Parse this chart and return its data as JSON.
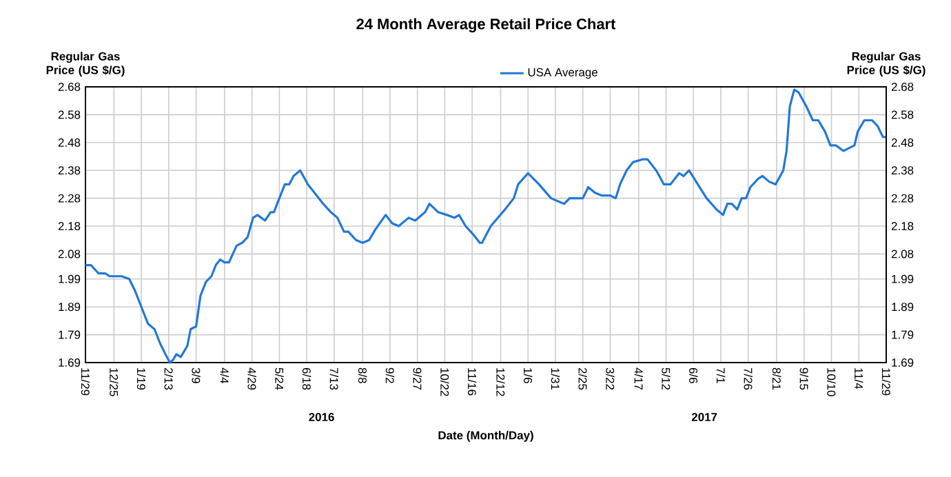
{
  "chart_data": {
    "type": "line",
    "title": "24 Month Average Retail Price Chart",
    "xlabel": "Date (Month/Day)",
    "ylabel": "Regular Gas Price (US $/G)",
    "y2label": "Regular Gas Price (US $/G)",
    "x": [
      "2015-11-29",
      "2015-12-04",
      "2015-12-11",
      "2015-12-17",
      "2015-12-21",
      "2016-01-01",
      "2016-01-08",
      "2016-01-13",
      "2016-01-20",
      "2016-01-25",
      "2016-01-31",
      "2016-02-05",
      "2016-02-10",
      "2016-02-14",
      "2016-02-17",
      "2016-02-20",
      "2016-02-24",
      "2016-03-01",
      "2016-03-04",
      "2016-03-09",
      "2016-03-13",
      "2016-03-18",
      "2016-03-23",
      "2016-03-27",
      "2016-03-31",
      "2016-04-04",
      "2016-04-08",
      "2016-04-15",
      "2016-04-20",
      "2016-04-25",
      "2016-04-30",
      "2016-05-04",
      "2016-05-11",
      "2016-05-16",
      "2016-05-19",
      "2016-05-24",
      "2016-05-29",
      "2016-06-02",
      "2016-06-06",
      "2016-06-12",
      "2016-06-19",
      "2016-06-27",
      "2016-07-03",
      "2016-07-10",
      "2016-07-16",
      "2016-07-22",
      "2016-07-26",
      "2016-08-02",
      "2016-08-08",
      "2016-08-14",
      "2016-08-20",
      "2016-08-29",
      "2016-09-04",
      "2016-09-10",
      "2016-09-19",
      "2016-09-25",
      "2016-10-04",
      "2016-10-08",
      "2016-10-16",
      "2016-10-24",
      "2016-10-31",
      "2016-11-04",
      "2016-11-10",
      "2016-11-17",
      "2016-11-23",
      "2016-11-25",
      "2016-12-03",
      "2016-12-16",
      "2016-12-24",
      "2016-12-28",
      "2017-01-06",
      "2017-01-16",
      "2017-01-27",
      "2017-02-02",
      "2017-02-08",
      "2017-02-13",
      "2017-02-19",
      "2017-02-25",
      "2017-03-02",
      "2017-03-08",
      "2017-03-14",
      "2017-03-22",
      "2017-03-27",
      "2017-03-31",
      "2017-04-06",
      "2017-04-12",
      "2017-04-21",
      "2017-04-25",
      "2017-05-03",
      "2017-05-10",
      "2017-05-16",
      "2017-05-24",
      "2017-05-28",
      "2017-06-02",
      "2017-06-10",
      "2017-06-18",
      "2017-06-27",
      "2017-07-03",
      "2017-07-07",
      "2017-07-11",
      "2017-07-16",
      "2017-07-20",
      "2017-07-24",
      "2017-07-28",
      "2017-08-04",
      "2017-08-08",
      "2017-08-14",
      "2017-08-20",
      "2017-08-27",
      "2017-08-30",
      "2017-09-02",
      "2017-09-06",
      "2017-09-10",
      "2017-09-17",
      "2017-09-23",
      "2017-09-28",
      "2017-10-04",
      "2017-10-09",
      "2017-10-14",
      "2017-10-21",
      "2017-10-26",
      "2017-10-31",
      "2017-11-03",
      "2017-11-09",
      "2017-11-16",
      "2017-11-21",
      "2017-11-26",
      "2017-11-29"
    ],
    "series": [
      {
        "name": "USA Average",
        "color": "#2477d9",
        "values": [
          2.04,
          2.04,
          2.01,
          2.01,
          2.0,
          2.0,
          1.99,
          1.95,
          1.88,
          1.83,
          1.81,
          1.76,
          1.72,
          1.69,
          1.7,
          1.72,
          1.71,
          1.75,
          1.81,
          1.82,
          1.93,
          1.98,
          2.0,
          2.04,
          2.06,
          2.05,
          2.05,
          2.11,
          2.12,
          2.14,
          2.21,
          2.22,
          2.2,
          2.23,
          2.23,
          2.28,
          2.33,
          2.33,
          2.36,
          2.38,
          2.33,
          2.29,
          2.26,
          2.23,
          2.21,
          2.16,
          2.16,
          2.13,
          2.12,
          2.13,
          2.17,
          2.22,
          2.19,
          2.18,
          2.21,
          2.2,
          2.23,
          2.26,
          2.23,
          2.22,
          2.21,
          2.22,
          2.18,
          2.15,
          2.12,
          2.12,
          2.18,
          2.24,
          2.28,
          2.33,
          2.37,
          2.33,
          2.28,
          2.27,
          2.26,
          2.28,
          2.28,
          2.28,
          2.32,
          2.3,
          2.29,
          2.29,
          2.28,
          2.33,
          2.38,
          2.41,
          2.42,
          2.42,
          2.38,
          2.33,
          2.33,
          2.37,
          2.36,
          2.38,
          2.33,
          2.28,
          2.24,
          2.22,
          2.26,
          2.26,
          2.24,
          2.28,
          2.28,
          2.32,
          2.35,
          2.36,
          2.34,
          2.33,
          2.38,
          2.45,
          2.61,
          2.67,
          2.66,
          2.61,
          2.56,
          2.56,
          2.52,
          2.47,
          2.47,
          2.45,
          2.46,
          2.47,
          2.52,
          2.56,
          2.56,
          2.54,
          2.5,
          2.5
        ]
      }
    ],
    "xlim": [
      "2015-11-29",
      "2017-11-29"
    ],
    "xticks": [
      {
        "value": "2015-11-29",
        "label": "11/29"
      },
      {
        "value": "2015-12-25",
        "label": "12/25"
      },
      {
        "value": "2016-01-19",
        "label": "1/19"
      },
      {
        "value": "2016-02-13",
        "label": "2/13"
      },
      {
        "value": "2016-03-09",
        "label": "3/9"
      },
      {
        "value": "2016-04-04",
        "label": "4/4"
      },
      {
        "value": "2016-04-29",
        "label": "4/29"
      },
      {
        "value": "2016-05-24",
        "label": "5/24"
      },
      {
        "value": "2016-06-18",
        "label": "6/18"
      },
      {
        "value": "2016-07-13",
        "label": "7/13"
      },
      {
        "value": "2016-08-08",
        "label": "8/8"
      },
      {
        "value": "2016-09-02",
        "label": "9/2"
      },
      {
        "value": "2016-09-27",
        "label": "9/27"
      },
      {
        "value": "2016-10-22",
        "label": "10/22"
      },
      {
        "value": "2016-11-16",
        "label": "11/16"
      },
      {
        "value": "2016-12-12",
        "label": "12/12"
      },
      {
        "value": "2017-01-06",
        "label": "1/6"
      },
      {
        "value": "2017-01-31",
        "label": "1/31"
      },
      {
        "value": "2017-02-25",
        "label": "2/25"
      },
      {
        "value": "2017-03-22",
        "label": "3/22"
      },
      {
        "value": "2017-04-17",
        "label": "4/17"
      },
      {
        "value": "2017-05-12",
        "label": "5/12"
      },
      {
        "value": "2017-06-06",
        "label": "6/6"
      },
      {
        "value": "2017-07-01",
        "label": "7/1"
      },
      {
        "value": "2017-07-26",
        "label": "7/26"
      },
      {
        "value": "2017-08-21",
        "label": "8/21"
      },
      {
        "value": "2017-09-15",
        "label": "9/15"
      },
      {
        "value": "2017-10-10",
        "label": "10/10"
      },
      {
        "value": "2017-11-04",
        "label": "11/4"
      },
      {
        "value": "2017-11-29",
        "label": "11/29"
      }
    ],
    "ylim": [
      1.69,
      2.68
    ],
    "yticks": [
      1.69,
      1.79,
      1.89,
      1.99,
      2.08,
      2.18,
      2.28,
      2.38,
      2.48,
      2.58,
      2.68
    ],
    "y2lim": [
      1.69,
      2.68
    ],
    "y2ticks": [
      1.69,
      1.79,
      1.89,
      1.99,
      2.08,
      2.18,
      2.28,
      2.38,
      2.48,
      2.58,
      2.68
    ],
    "annotations": [
      "2016",
      "2017"
    ],
    "grid": true,
    "legend": "top",
    "marker": "none",
    "line_style": "solid"
  }
}
